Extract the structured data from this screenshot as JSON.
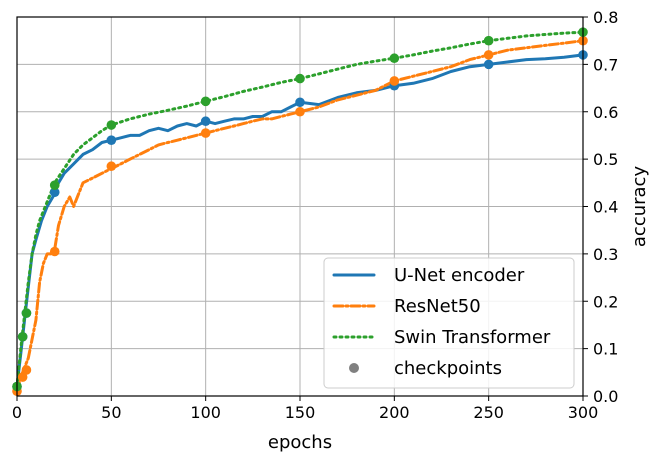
{
  "chart_data": {
    "type": "line",
    "xlabel": "epochs",
    "ylabel": "accuracy",
    "xlim": [
      0,
      300
    ],
    "ylim": [
      0,
      0.8
    ],
    "x_ticks": [
      "0",
      "50",
      "100",
      "150",
      "200",
      "250",
      "300"
    ],
    "y_ticks": [
      "0.0",
      "0.1",
      "0.2",
      "0.3",
      "0.4",
      "0.5",
      "0.6",
      "0.7",
      "0.8"
    ],
    "y_axis_side": "right",
    "grid": true,
    "legend_position": "lower-right",
    "series": [
      {
        "name": "U-Net encoder",
        "color": "#1f77b4",
        "style": "solid",
        "x": [
          0,
          2,
          4,
          6,
          8,
          10,
          13,
          16,
          19,
          22,
          25,
          30,
          35,
          40,
          45,
          50,
          55,
          60,
          65,
          70,
          75,
          80,
          85,
          90,
          95,
          100,
          105,
          110,
          115,
          120,
          125,
          130,
          135,
          140,
          145,
          150,
          160,
          170,
          180,
          190,
          200,
          210,
          220,
          230,
          240,
          250,
          260,
          270,
          280,
          290,
          300
        ],
        "y": [
          0.02,
          0.09,
          0.16,
          0.23,
          0.3,
          0.33,
          0.37,
          0.4,
          0.42,
          0.45,
          0.47,
          0.49,
          0.51,
          0.52,
          0.535,
          0.54,
          0.545,
          0.55,
          0.55,
          0.56,
          0.565,
          0.56,
          0.57,
          0.575,
          0.57,
          0.58,
          0.575,
          0.58,
          0.585,
          0.585,
          0.59,
          0.59,
          0.6,
          0.6,
          0.61,
          0.62,
          0.615,
          0.63,
          0.64,
          0.645,
          0.655,
          0.66,
          0.67,
          0.685,
          0.695,
          0.7,
          0.705,
          0.71,
          0.712,
          0.715,
          0.72
        ]
      },
      {
        "name": "ResNet50",
        "color": "#ff7f0e",
        "style": "dashdot",
        "x": [
          0,
          2,
          4,
          6,
          8,
          10,
          12,
          14,
          16,
          18,
          20,
          22,
          25,
          28,
          30,
          35,
          40,
          45,
          50,
          55,
          60,
          65,
          70,
          75,
          80,
          85,
          90,
          95,
          100,
          105,
          110,
          115,
          120,
          125,
          130,
          135,
          140,
          145,
          150,
          160,
          170,
          180,
          190,
          200,
          210,
          220,
          230,
          240,
          250,
          260,
          270,
          280,
          290,
          300
        ],
        "y": [
          0.01,
          0.04,
          0.06,
          0.08,
          0.12,
          0.16,
          0.24,
          0.28,
          0.3,
          0.3,
          0.31,
          0.36,
          0.4,
          0.42,
          0.4,
          0.45,
          0.46,
          0.47,
          0.48,
          0.49,
          0.5,
          0.51,
          0.52,
          0.53,
          0.535,
          0.54,
          0.545,
          0.55,
          0.555,
          0.56,
          0.565,
          0.57,
          0.575,
          0.58,
          0.585,
          0.585,
          0.59,
          0.595,
          0.6,
          0.61,
          0.625,
          0.635,
          0.645,
          0.665,
          0.675,
          0.685,
          0.695,
          0.71,
          0.72,
          0.73,
          0.735,
          0.74,
          0.745,
          0.75
        ]
      },
      {
        "name": "Swin Transformer",
        "color": "#2ca02c",
        "style": "dotted",
        "x": [
          0,
          2,
          4,
          6,
          8,
          10,
          12,
          15,
          18,
          20,
          25,
          30,
          35,
          40,
          45,
          50,
          60,
          70,
          80,
          90,
          100,
          110,
          120,
          130,
          140,
          150,
          160,
          170,
          180,
          190,
          200,
          210,
          220,
          230,
          240,
          250,
          260,
          270,
          280,
          290,
          300
        ],
        "y": [
          0.02,
          0.1,
          0.17,
          0.24,
          0.3,
          0.34,
          0.37,
          0.4,
          0.43,
          0.45,
          0.48,
          0.51,
          0.53,
          0.545,
          0.56,
          0.572,
          0.585,
          0.595,
          0.603,
          0.612,
          0.622,
          0.632,
          0.643,
          0.652,
          0.662,
          0.67,
          0.68,
          0.69,
          0.7,
          0.707,
          0.713,
          0.72,
          0.728,
          0.735,
          0.743,
          0.75,
          0.755,
          0.76,
          0.763,
          0.766,
          0.768
        ]
      }
    ],
    "checkpoints": {
      "name": "checkpoints",
      "color": "#808080",
      "epochs": [
        0,
        3,
        5,
        20,
        50,
        100,
        150,
        200,
        250,
        300
      ],
      "values": {
        "U-Net encoder": [
          0.02,
          0.125,
          0.175,
          0.43,
          0.54,
          0.58,
          0.62,
          0.655,
          0.7,
          0.72
        ],
        "ResNet50": [
          0.01,
          0.04,
          0.055,
          0.305,
          0.485,
          0.555,
          0.6,
          0.665,
          0.72,
          0.75
        ],
        "Swin Transformer": [
          0.02,
          0.125,
          0.175,
          0.445,
          0.572,
          0.622,
          0.67,
          0.713,
          0.75,
          0.768
        ]
      }
    }
  }
}
